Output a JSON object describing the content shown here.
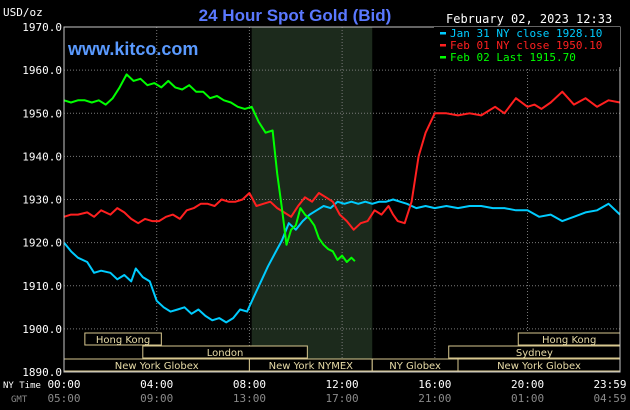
{
  "chart_data": {
    "type": "line",
    "title": "24 Hour Spot Gold (Bid)",
    "watermark": "www.kitco.com",
    "date_label": "February 02, 2023 12:33",
    "y_unit_label": "USD/oz",
    "ylim": [
      1890.0,
      1970.0
    ],
    "y_ticks": [
      "1970.0",
      "1960.0",
      "1950.0",
      "1940.0",
      "1930.0",
      "1920.0",
      "1910.0",
      "1900.0",
      "1890.0"
    ],
    "x_row_labels": [
      "NY Time",
      "GMT"
    ],
    "x_ticks_ny": [
      "00:00",
      "04:00",
      "08:00",
      "12:00",
      "16:00",
      "20:00",
      "23:59"
    ],
    "x_ticks_gmt": [
      "05:00",
      "09:00",
      "13:00",
      "17:00",
      "21:00",
      "01:00",
      "04:59"
    ],
    "grid": true,
    "legend_position": "top-right",
    "legend": [
      {
        "label": "Jan 31 NY close 1928.10",
        "color": "#00ccff"
      },
      {
        "label": "Feb 01 NY close 1950.10",
        "color": "#ff2020"
      },
      {
        "label": "Feb 02 Last 1915.70",
        "color": "#00ff00"
      }
    ],
    "highlight_window_ny_hours": [
      8.1,
      13.3
    ],
    "sessions": [
      {
        "label": "Hong Kong",
        "start": 0.9,
        "end": 4.2,
        "row": 0
      },
      {
        "label": "Hong Kong",
        "start": 19.6,
        "end": 23.99,
        "row": 0
      },
      {
        "label": "London",
        "start": 3.4,
        "end": 10.5,
        "row": 1
      },
      {
        "label": "Sydney",
        "start": 16.6,
        "end": 23.99,
        "row": 1
      },
      {
        "label": "New York Globex",
        "start": 0.0,
        "end": 8.0,
        "row": 2
      },
      {
        "label": "New York NYMEX",
        "start": 8.0,
        "end": 13.3,
        "row": 2
      },
      {
        "label": "NY Globex",
        "start": 13.3,
        "end": 17.0,
        "row": 2
      },
      {
        "label": "New York Globex",
        "start": 17.0,
        "end": 23.99,
        "row": 2
      }
    ],
    "series": [
      {
        "name": "Jan 31 NY close 1928.10",
        "color": "#00ccff",
        "x": [
          0,
          0.3,
          0.6,
          1.0,
          1.3,
          1.6,
          2.0,
          2.3,
          2.6,
          2.9,
          3.1,
          3.4,
          3.7,
          4.0,
          4.3,
          4.6,
          4.9,
          5.2,
          5.5,
          5.8,
          6.1,
          6.4,
          6.7,
          7.0,
          7.3,
          7.6,
          7.9,
          8.2,
          8.5,
          8.8,
          9.1,
          9.4,
          9.7,
          10.0,
          10.3,
          10.6,
          10.9,
          11.2,
          11.5,
          11.8,
          12.1,
          12.4,
          12.7,
          13.0,
          13.3,
          13.6,
          13.9,
          14.2,
          14.5,
          14.8,
          15.2,
          15.6,
          16.0,
          16.5,
          17.0,
          17.5,
          18.0,
          18.5,
          19.0,
          19.5,
          20.0,
          20.5,
          21.0,
          21.5,
          22.0,
          22.5,
          23.0,
          23.5,
          23.99
        ],
        "y": [
          1920.0,
          1918.0,
          1916.5,
          1915.5,
          1913.0,
          1913.5,
          1913.0,
          1911.5,
          1912.5,
          1911.0,
          1914.0,
          1912.0,
          1911.0,
          1906.5,
          1905.0,
          1904.0,
          1904.5,
          1905.0,
          1903.5,
          1904.5,
          1903.0,
          1902.0,
          1902.5,
          1901.5,
          1902.5,
          1904.5,
          1904.0,
          1907.5,
          1911.0,
          1914.5,
          1917.5,
          1920.5,
          1924.5,
          1923.0,
          1925.0,
          1926.5,
          1927.5,
          1928.5,
          1928.0,
          1929.5,
          1929.0,
          1929.5,
          1929.0,
          1929.5,
          1929.0,
          1929.5,
          1929.5,
          1930.0,
          1929.5,
          1929.0,
          1928.0,
          1928.5,
          1928.0,
          1928.5,
          1928.0,
          1928.5,
          1928.5,
          1928.0,
          1928.0,
          1927.5,
          1927.5,
          1926.0,
          1926.5,
          1925.0,
          1926.0,
          1927.0,
          1927.5,
          1929.0,
          1926.5
        ]
      },
      {
        "name": "Feb 01 NY close 1950.10",
        "color": "#ff2020",
        "x": [
          0,
          0.3,
          0.6,
          1.0,
          1.3,
          1.6,
          2.0,
          2.3,
          2.6,
          2.9,
          3.2,
          3.5,
          3.8,
          4.1,
          4.4,
          4.7,
          5.0,
          5.3,
          5.6,
          5.9,
          6.2,
          6.5,
          6.8,
          7.1,
          7.4,
          7.7,
          8.0,
          8.3,
          8.6,
          8.9,
          9.2,
          9.5,
          9.8,
          10.1,
          10.4,
          10.7,
          11.0,
          11.3,
          11.6,
          11.9,
          12.2,
          12.5,
          12.8,
          13.1,
          13.4,
          13.7,
          14.0,
          14.2,
          14.4,
          14.7,
          15.0,
          15.3,
          15.6,
          16.0,
          16.5,
          17.0,
          17.5,
          18.0,
          18.3,
          18.6,
          19.0,
          19.5,
          20.0,
          20.3,
          20.6,
          21.0,
          21.5,
          22.0,
          22.5,
          23.0,
          23.5,
          23.99
        ],
        "y": [
          1926.0,
          1926.5,
          1926.5,
          1927.0,
          1926.0,
          1927.5,
          1926.5,
          1928.0,
          1927.0,
          1925.5,
          1924.5,
          1925.5,
          1925.0,
          1925.0,
          1926.0,
          1926.5,
          1925.5,
          1927.5,
          1928.0,
          1929.0,
          1929.0,
          1928.5,
          1930.0,
          1929.5,
          1929.5,
          1930.0,
          1931.5,
          1928.5,
          1929.0,
          1929.5,
          1928.0,
          1927.0,
          1926.0,
          1928.5,
          1930.5,
          1929.5,
          1931.5,
          1930.5,
          1929.5,
          1926.5,
          1925.0,
          1923.0,
          1924.5,
          1925.0,
          1927.5,
          1926.5,
          1928.5,
          1926.5,
          1925.0,
          1924.5,
          1929.5,
          1940.0,
          1945.5,
          1950.0,
          1950.0,
          1949.5,
          1950.0,
          1949.5,
          1950.5,
          1951.5,
          1950.0,
          1953.5,
          1951.5,
          1952.0,
          1951.0,
          1952.5,
          1955.0,
          1952.0,
          1953.5,
          1951.5,
          1953.0,
          1952.5
        ]
      },
      {
        "name": "Feb 02 Last 1915.70",
        "color": "#00ff00",
        "x": [
          0,
          0.3,
          0.6,
          0.9,
          1.2,
          1.5,
          1.8,
          2.1,
          2.4,
          2.7,
          3.0,
          3.3,
          3.6,
          3.9,
          4.2,
          4.5,
          4.8,
          5.1,
          5.4,
          5.7,
          6.0,
          6.3,
          6.6,
          6.9,
          7.2,
          7.5,
          7.8,
          8.1,
          8.4,
          8.7,
          9.0,
          9.2,
          9.4,
          9.6,
          9.8,
          10.0,
          10.2,
          10.4,
          10.6,
          10.8,
          11.0,
          11.2,
          11.4,
          11.6,
          11.8,
          12.0,
          12.2,
          12.4,
          12.55
        ],
        "y": [
          1953.0,
          1952.5,
          1953.0,
          1953.0,
          1952.5,
          1953.0,
          1952.0,
          1953.5,
          1956.0,
          1959.0,
          1957.5,
          1958.0,
          1956.5,
          1957.0,
          1956.0,
          1957.5,
          1956.0,
          1955.5,
          1956.5,
          1955.0,
          1955.0,
          1953.5,
          1954.0,
          1953.0,
          1952.5,
          1951.5,
          1951.0,
          1951.5,
          1948.0,
          1945.5,
          1946.0,
          1936.0,
          1928.0,
          1919.5,
          1923.0,
          1924.0,
          1928.0,
          1926.5,
          1925.5,
          1924.0,
          1921.0,
          1919.5,
          1918.5,
          1918.0,
          1916.0,
          1917.0,
          1915.5,
          1916.5,
          1915.7
        ]
      }
    ]
  }
}
